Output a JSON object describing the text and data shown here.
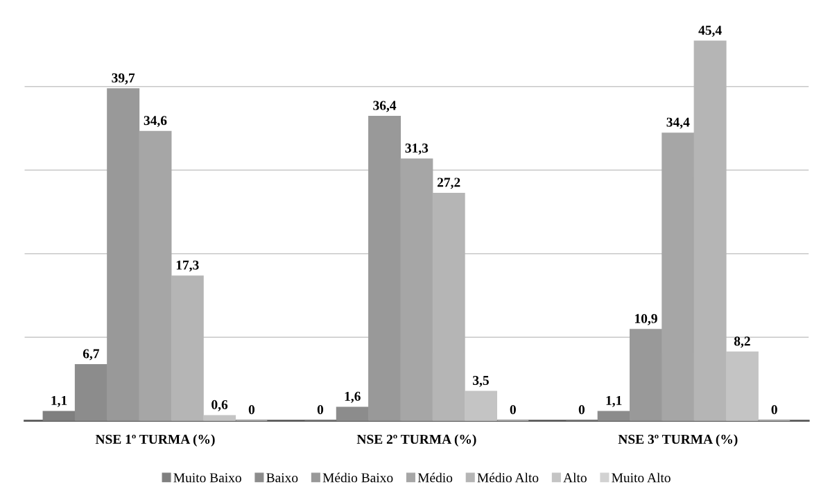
{
  "chart_data": {
    "type": "bar",
    "categories": [
      "NSE 1º TURMA (%)",
      "NSE 2º TURMA (%)",
      "NSE 3º TURMA (%)"
    ],
    "series": [
      {
        "name": "Muito Baixo",
        "color": "#7f7f7f",
        "values": [
          1.1,
          0,
          0
        ],
        "value_labels": [
          "1,1",
          "0",
          "0"
        ]
      },
      {
        "name": "Baixo",
        "color": "#8c8c8c",
        "values": [
          6.7,
          1.6,
          1.1
        ],
        "value_labels": [
          "6,7",
          "1,6",
          "1,1"
        ]
      },
      {
        "name": "Médio Baixo",
        "color": "#999999",
        "values": [
          39.7,
          36.4,
          10.9
        ],
        "value_labels": [
          "39,7",
          "36,4",
          "10,9"
        ]
      },
      {
        "name": "Médio",
        "color": "#a6a6a6",
        "values": [
          34.6,
          31.3,
          34.4
        ],
        "value_labels": [
          "34,6",
          "31,3",
          "34,4"
        ]
      },
      {
        "name": "Médio Alto",
        "color": "#b5b5b5",
        "values": [
          17.3,
          27.2,
          45.4
        ],
        "value_labels": [
          "17,3",
          "27,2",
          "45,4"
        ]
      },
      {
        "name": "Alto",
        "color": "#c4c4c4",
        "values": [
          0.6,
          3.5,
          8.2
        ],
        "value_labels": [
          "0,6",
          "3,5",
          "8,2"
        ]
      },
      {
        "name": "Muito Alto",
        "color": "#d2d2d2",
        "values": [
          0,
          0,
          0
        ],
        "value_labels": [
          "0",
          "0",
          "0"
        ]
      }
    ],
    "tick_labels": "x",
    "grid": "y",
    "legend": "bottom"
  }
}
